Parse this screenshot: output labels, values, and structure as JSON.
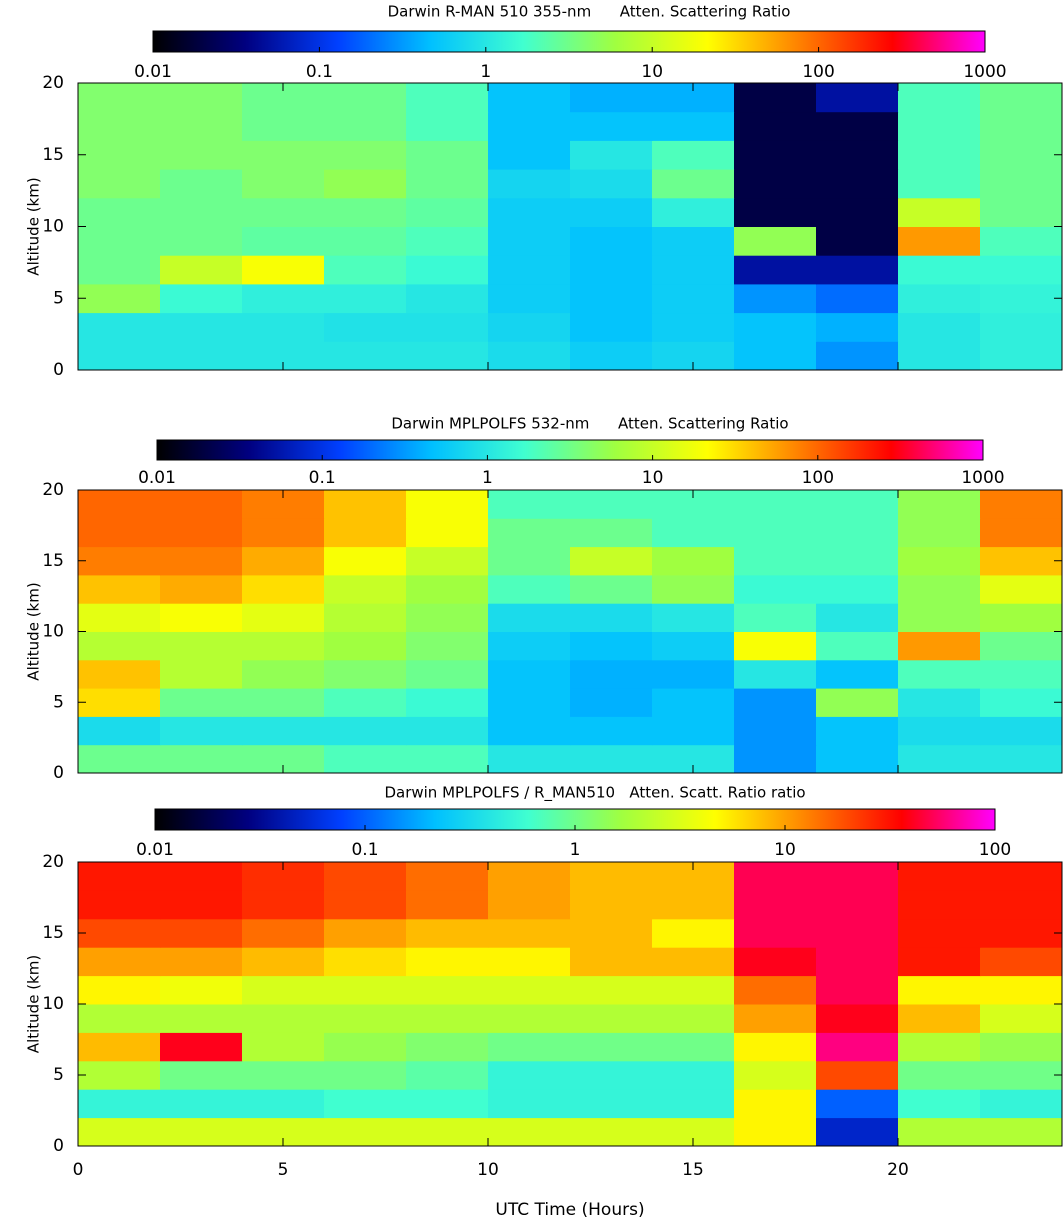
{
  "chart_data": [
    {
      "type": "heatmap",
      "title": "Darwin R-MAN 510 355-nm      Atten. Scattering Ratio",
      "y_label": "Altitude (km)",
      "x": [
        0,
        2,
        4,
        6,
        8,
        10,
        12,
        14,
        16,
        18,
        20,
        22,
        24
      ],
      "y": [
        0,
        2,
        4,
        6,
        8,
        10,
        12,
        14,
        16,
        18,
        20
      ],
      "z": [
        [
          1,
          1,
          1,
          1,
          1,
          0.8,
          0.6,
          0.7,
          0.5,
          0.3,
          1,
          1.2
        ],
        [
          1,
          1,
          1,
          0.9,
          0.9,
          0.7,
          0.5,
          0.6,
          0.5,
          0.4,
          1,
          1.2
        ],
        [
          5,
          1.5,
          1.2,
          1.2,
          1,
          0.6,
          0.5,
          0.6,
          0.3,
          0.2,
          1.2,
          1.3
        ],
        [
          3,
          10,
          20,
          2,
          1.5,
          0.6,
          0.5,
          0.6,
          0.05,
          0.05,
          1.5,
          1.5
        ],
        [
          3,
          3,
          2.5,
          2.5,
          2,
          0.6,
          0.5,
          0.6,
          5,
          0.02,
          60,
          2
        ],
        [
          3,
          3,
          3,
          3,
          2.5,
          0.6,
          0.6,
          1.2,
          0.02,
          0.02,
          10,
          3
        ],
        [
          4,
          3,
          4,
          5,
          3,
          0.7,
          0.8,
          3,
          0.02,
          0.02,
          2,
          3
        ],
        [
          4,
          4,
          4,
          4,
          3,
          0.5,
          1,
          2,
          0.02,
          0.02,
          2,
          3
        ],
        [
          4,
          4,
          3,
          3,
          2,
          0.5,
          0.5,
          0.5,
          0.02,
          0.02,
          2,
          3
        ],
        [
          4,
          4,
          3,
          3,
          2,
          0.5,
          0.4,
          0.4,
          0.02,
          0.05,
          2,
          3
        ]
      ],
      "xlim": [
        0,
        24
      ],
      "ylim": [
        0,
        20
      ],
      "yticks": [
        0,
        5,
        10,
        15,
        20
      ],
      "clim": [
        0.01,
        1000
      ],
      "cticks": [
        0.01,
        0.1,
        1,
        10,
        100,
        1000
      ],
      "color_log": true,
      "colormap": [
        "#000000",
        "#000080",
        "#0040ff",
        "#00c0ff",
        "#40ffd0",
        "#a0ff40",
        "#ffff00",
        "#ff8000",
        "#ff0000",
        "#ff00ff"
      ]
    },
    {
      "type": "heatmap",
      "title": "Darwin MPLPOLFS 532-nm      Atten. Scattering Ratio",
      "y_label": "Altitude (km)",
      "x": [
        0,
        2,
        4,
        6,
        8,
        10,
        12,
        14,
        16,
        18,
        20,
        22,
        24
      ],
      "y": [
        0,
        2,
        4,
        6,
        8,
        10,
        12,
        14,
        16,
        18,
        20
      ],
      "z": [
        [
          3,
          3,
          3,
          2,
          2,
          1,
          1,
          1,
          0.3,
          0.5,
          1,
          1
        ],
        [
          0.8,
          1,
          1,
          1,
          1,
          0.5,
          0.5,
          0.5,
          0.3,
          0.5,
          0.8,
          0.8
        ],
        [
          30,
          3,
          3,
          2,
          1.5,
          0.5,
          0.4,
          0.5,
          0.3,
          5,
          1,
          1.5
        ],
        [
          40,
          8,
          5,
          4,
          3,
          0.5,
          0.4,
          0.4,
          1,
          0.5,
          2,
          2
        ],
        [
          8,
          8,
          8,
          6,
          4,
          0.6,
          0.5,
          0.6,
          20,
          2,
          60,
          3
        ],
        [
          15,
          20,
          15,
          8,
          5,
          0.8,
          0.8,
          1,
          2,
          1,
          5,
          6
        ],
        [
          40,
          50,
          30,
          10,
          6,
          2,
          3,
          5,
          1.5,
          1.5,
          5,
          15
        ],
        [
          80,
          80,
          50,
          20,
          10,
          3,
          10,
          6,
          2,
          2,
          6,
          40
        ],
        [
          100,
          100,
          80,
          40,
          20,
          3,
          3,
          2,
          2,
          2,
          5,
          80
        ],
        [
          100,
          100,
          80,
          40,
          20,
          2,
          2,
          2,
          2,
          2,
          5,
          80
        ]
      ],
      "xlim": [
        0,
        24
      ],
      "ylim": [
        0,
        20
      ],
      "yticks": [
        0,
        5,
        10,
        15,
        20
      ],
      "clim": [
        0.01,
        1000
      ],
      "cticks": [
        0.01,
        0.1,
        1,
        10,
        100,
        1000
      ],
      "color_log": true,
      "colormap": [
        "#000000",
        "#000080",
        "#0040ff",
        "#00c0ff",
        "#40ffd0",
        "#a0ff40",
        "#ffff00",
        "#ff8000",
        "#ff0000",
        "#ff00ff"
      ]
    },
    {
      "type": "heatmap",
      "title": "Darwin MPLPOLFS / R_MAN510   Atten. Scatt. Ratio ratio",
      "y_label": "Altitude (km)",
      "x_label": "UTC Time (Hours)",
      "x": [
        0,
        2,
        4,
        6,
        8,
        10,
        12,
        14,
        16,
        18,
        20,
        22,
        24
      ],
      "y": [
        0,
        2,
        4,
        6,
        8,
        10,
        12,
        14,
        16,
        18,
        20
      ],
      "z": [
        [
          3,
          3,
          3,
          3,
          3,
          3,
          3,
          3,
          5,
          0.05,
          2,
          2
        ],
        [
          0.5,
          0.5,
          0.5,
          0.6,
          0.6,
          0.5,
          0.5,
          0.5,
          5,
          0.1,
          0.6,
          0.5
        ],
        [
          2,
          1,
          1,
          1,
          0.8,
          0.5,
          0.5,
          0.5,
          3,
          20,
          1,
          1
        ],
        [
          8,
          40,
          2,
          1.5,
          1.2,
          1,
          1,
          1,
          5,
          60,
          2,
          1.5
        ],
        [
          2,
          2,
          2,
          2,
          2,
          2,
          2,
          2,
          10,
          40,
          8,
          3
        ],
        [
          5,
          4,
          3,
          3,
          3,
          3,
          3,
          3,
          15,
          50,
          5,
          5
        ],
        [
          10,
          10,
          8,
          6,
          5,
          5,
          8,
          8,
          40,
          50,
          30,
          20
        ],
        [
          20,
          20,
          15,
          10,
          8,
          8,
          8,
          5,
          50,
          50,
          30,
          30
        ],
        [
          30,
          30,
          25,
          20,
          15,
          10,
          8,
          8,
          50,
          50,
          30,
          30
        ],
        [
          30,
          30,
          25,
          20,
          15,
          10,
          8,
          8,
          50,
          50,
          30,
          30
        ]
      ],
      "xlim": [
        0,
        24
      ],
      "ylim": [
        0,
        20
      ],
      "xticks": [
        0,
        5,
        10,
        15,
        20
      ],
      "yticks": [
        0,
        5,
        10,
        15,
        20
      ],
      "clim": [
        0.01,
        100
      ],
      "cticks": [
        0.01,
        0.1,
        1,
        10,
        100
      ],
      "color_log": true,
      "colormap": [
        "#000000",
        "#000080",
        "#0040ff",
        "#00c0ff",
        "#40ffd0",
        "#a0ff40",
        "#ffff00",
        "#ff8000",
        "#ff0000",
        "#ff00ff"
      ]
    }
  ]
}
